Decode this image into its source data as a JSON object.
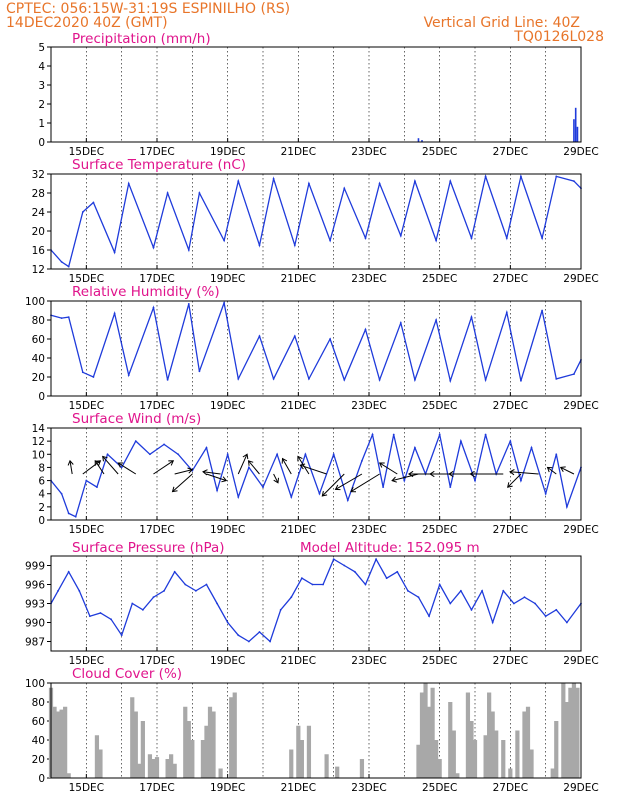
{
  "header": {
    "line1_left": "CPTEC:    056:15W-31:19S   ESPINILHO (RS)",
    "line2_left": "14DEC2020 40Z (GMT)",
    "line1_right": "Vertical Grid Line: 40Z",
    "line2_right": "TQ0126L028"
  },
  "colors": {
    "title": "#e0148c",
    "header": "#e8752a",
    "series": "#1f3bdb",
    "bars": "#a8a8a8",
    "arrows": "#000000"
  },
  "chart_data": [
    {
      "type": "bar",
      "title": "Precipitation (mm/h)",
      "ylim": [
        0,
        5
      ],
      "yticks": [
        "0",
        "1",
        "2",
        "3",
        "4",
        "5"
      ],
      "xlim": [
        14,
        29
      ],
      "xticks": [
        "15DEC",
        "17DEC",
        "19DEC",
        "21DEC",
        "23DEC",
        "25DEC",
        "27DEC",
        "29DEC"
      ],
      "x": [
        24.4,
        24.5,
        28.8,
        28.85,
        28.9
      ],
      "values": [
        0.2,
        0.1,
        1.2,
        1.8,
        0.8
      ]
    },
    {
      "type": "line",
      "title": "Surface Temperature (nC)",
      "ylim": [
        12,
        32
      ],
      "yticks": [
        "12",
        "16",
        "20",
        "24",
        "28",
        "32"
      ],
      "xlim": [
        14,
        29
      ],
      "xticks": [
        "15DEC",
        "17DEC",
        "19DEC",
        "21DEC",
        "23DEC",
        "25DEC",
        "27DEC",
        "29DEC"
      ],
      "x": [
        14.0,
        14.3,
        14.5,
        14.9,
        15.2,
        15.8,
        16.2,
        16.9,
        17.3,
        17.9,
        18.2,
        18.9,
        19.3,
        19.9,
        20.3,
        20.9,
        21.3,
        21.9,
        22.3,
        22.9,
        23.3,
        23.9,
        24.3,
        24.9,
        25.3,
        25.9,
        26.3,
        26.9,
        27.3,
        27.9,
        28.3,
        28.8,
        29.0
      ],
      "values": [
        16,
        13.5,
        12.5,
        24,
        26,
        15.5,
        30,
        16.5,
        28,
        16,
        28,
        18,
        30.5,
        17,
        31,
        17,
        30,
        18,
        29,
        18.5,
        30,
        19,
        30.5,
        18,
        30.5,
        18.5,
        31.5,
        18.5,
        31.5,
        18.5,
        31.5,
        30.5,
        29
      ]
    },
    {
      "type": "line",
      "title": "Relative Humidity (%)",
      "ylim": [
        0,
        100
      ],
      "yticks": [
        "0",
        "20",
        "40",
        "60",
        "80",
        "100"
      ],
      "xlim": [
        14,
        29
      ],
      "xticks": [
        "15DEC",
        "17DEC",
        "19DEC",
        "21DEC",
        "23DEC",
        "25DEC",
        "27DEC",
        "29DEC"
      ],
      "x": [
        14.0,
        14.3,
        14.5,
        14.9,
        15.2,
        15.8,
        16.2,
        16.9,
        17.3,
        17.9,
        18.2,
        18.9,
        19.3,
        19.9,
        20.3,
        20.9,
        21.3,
        21.9,
        22.3,
        22.9,
        23.3,
        23.9,
        24.3,
        24.9,
        25.3,
        25.9,
        26.3,
        26.9,
        27.3,
        27.9,
        28.3,
        28.8,
        29.0
      ],
      "values": [
        85,
        82,
        83,
        25,
        20,
        87,
        22,
        93,
        17,
        97,
        26,
        98,
        18,
        63,
        18,
        63,
        18,
        60,
        17,
        70,
        17,
        77,
        17,
        80,
        16,
        83,
        17,
        88,
        16,
        90,
        18,
        23,
        38
      ]
    },
    {
      "type": "line",
      "title": "Surface Wind (m/s)",
      "ylim": [
        0,
        14
      ],
      "yticks": [
        "0",
        "2",
        "4",
        "6",
        "8",
        "10",
        "12",
        "14"
      ],
      "xlim": [
        14,
        29
      ],
      "xticks": [
        "15DEC",
        "17DEC",
        "19DEC",
        "21DEC",
        "23DEC",
        "25DEC",
        "27DEC",
        "29DEC"
      ],
      "x": [
        14.0,
        14.3,
        14.5,
        14.7,
        15.0,
        15.3,
        15.6,
        16.0,
        16.4,
        16.8,
        17.2,
        17.6,
        18.0,
        18.4,
        18.7,
        19.0,
        19.3,
        19.6,
        20.0,
        20.4,
        20.8,
        21.2,
        21.6,
        22.0,
        22.4,
        22.8,
        23.1,
        23.4,
        23.7,
        24.0,
        24.3,
        24.6,
        25.0,
        25.3,
        25.6,
        26.0,
        26.3,
        26.6,
        27.0,
        27.3,
        27.6,
        28.0,
        28.3,
        28.6,
        29.0
      ],
      "values": [
        6,
        4,
        1,
        0.5,
        6,
        5,
        10,
        8,
        12,
        10,
        11.5,
        10,
        7.5,
        11,
        4.5,
        10,
        3.5,
        8,
        5,
        10,
        3.5,
        10,
        4,
        10,
        3,
        9,
        13,
        5,
        13,
        6,
        11,
        7,
        13,
        5,
        12,
        6,
        13,
        7,
        12,
        6,
        11,
        4,
        10,
        2,
        8
      ],
      "vectors": [
        {
          "x": 14.6,
          "u": -0.1,
          "v": 0.6
        },
        {
          "x": 14.9,
          "u": 0.8,
          "v": 0.6
        },
        {
          "x": 15.5,
          "u": -0.4,
          "v": 0.6
        },
        {
          "x": 15.9,
          "u": -0.7,
          "v": 0.8
        },
        {
          "x": 16.4,
          "u": -0.8,
          "v": 0.5
        },
        {
          "x": 16.9,
          "u": 0.9,
          "v": 0.6
        },
        {
          "x": 17.5,
          "u": 0.8,
          "v": 0.2
        },
        {
          "x": 18.0,
          "u": -0.9,
          "v": -0.8
        },
        {
          "x": 18.4,
          "u": 0.9,
          "v": -0.3
        },
        {
          "x": 18.8,
          "u": -0.8,
          "v": 0.1
        },
        {
          "x": 19.3,
          "u": 0.4,
          "v": 0.9
        },
        {
          "x": 19.9,
          "u": -0.5,
          "v": 0.6
        },
        {
          "x": 20.3,
          "u": 0.2,
          "v": -0.4
        },
        {
          "x": 20.8,
          "u": -0.4,
          "v": 0.7
        },
        {
          "x": 21.3,
          "u": -0.5,
          "v": 0.8
        },
        {
          "x": 21.8,
          "u": -1.2,
          "v": 0.4
        },
        {
          "x": 22.3,
          "u": -1.0,
          "v": -1.0
        },
        {
          "x": 22.8,
          "u": -1.2,
          "v": -0.7
        },
        {
          "x": 23.3,
          "u": -1.3,
          "v": -0.8
        },
        {
          "x": 23.8,
          "u": -0.8,
          "v": 0.5
        },
        {
          "x": 24.4,
          "u": -1.2,
          "v": -0.3
        },
        {
          "x": 25.0,
          "u": -1.4,
          "v": 0.0
        },
        {
          "x": 25.6,
          "u": -1.4,
          "v": 0.0
        },
        {
          "x": 26.2,
          "u": -1.5,
          "v": 0.0
        },
        {
          "x": 26.8,
          "u": -1.5,
          "v": 0.0
        },
        {
          "x": 27.3,
          "u": -0.6,
          "v": -0.6
        },
        {
          "x": 27.8,
          "u": -1.3,
          "v": 0.1
        },
        {
          "x": 28.3,
          "u": -0.4,
          "v": 0.3
        },
        {
          "x": 28.8,
          "u": -0.6,
          "v": 0.3
        }
      ]
    },
    {
      "type": "line",
      "title": "Surface Pressure (hPa)",
      "subtitle": "Model Altitude: 152.095 m",
      "ylim": [
        985.5,
        1000.5
      ],
      "yticks": [
        "987",
        "990",
        "993",
        "996",
        "999"
      ],
      "ytick_values": [
        987,
        990,
        993,
        996,
        999
      ],
      "xlim": [
        14,
        29
      ],
      "xticks": [
        "15DEC",
        "17DEC",
        "19DEC",
        "21DEC",
        "23DEC",
        "25DEC",
        "27DEC",
        "29DEC"
      ],
      "x": [
        14.0,
        14.2,
        14.5,
        14.8,
        15.1,
        15.4,
        15.7,
        16.0,
        16.3,
        16.6,
        16.9,
        17.2,
        17.5,
        17.8,
        18.1,
        18.4,
        18.7,
        19.0,
        19.3,
        19.6,
        19.9,
        20.2,
        20.5,
        20.8,
        21.1,
        21.4,
        21.7,
        22.0,
        22.3,
        22.6,
        22.9,
        23.2,
        23.5,
        23.8,
        24.1,
        24.4,
        24.7,
        25.0,
        25.3,
        25.6,
        25.9,
        26.2,
        26.5,
        26.8,
        27.1,
        27.4,
        27.7,
        28.0,
        28.3,
        28.6,
        29.0
      ],
      "values": [
        993,
        995,
        998,
        995,
        991,
        991.5,
        990.5,
        988,
        993,
        992,
        994,
        995,
        998,
        996,
        995,
        996,
        993,
        990,
        988,
        987,
        988.5,
        987,
        992,
        994,
        997,
        996,
        996,
        1000,
        999,
        998,
        996,
        1000,
        997,
        998,
        995,
        994,
        991,
        996,
        993,
        995,
        992,
        995,
        990,
        995,
        993,
        994,
        993,
        991,
        992,
        990,
        993
      ]
    },
    {
      "type": "bar",
      "title": "Cloud Cover (%)",
      "ylim": [
        0,
        100
      ],
      "yticks": [
        "0",
        "20",
        "40",
        "60",
        "80",
        "100"
      ],
      "xlim": [
        14,
        29
      ],
      "xticks": [
        "15DEC",
        "17DEC",
        "19DEC",
        "21DEC",
        "23DEC",
        "25DEC",
        "27DEC",
        "29DEC"
      ],
      "x": [
        14.0,
        14.1,
        14.2,
        14.3,
        14.4,
        14.5,
        15.3,
        15.4,
        16.3,
        16.4,
        16.5,
        16.6,
        16.8,
        16.9,
        17.0,
        17.3,
        17.4,
        17.5,
        17.8,
        17.9,
        18.0,
        18.3,
        18.4,
        18.5,
        18.6,
        18.8,
        19.1,
        19.2,
        20.8,
        21.0,
        21.1,
        21.3,
        21.8,
        22.1,
        22.8,
        24.4,
        24.5,
        24.6,
        24.7,
        24.8,
        24.9,
        25.0,
        25.3,
        25.4,
        25.5,
        25.8,
        25.9,
        26.0,
        26.3,
        26.4,
        26.5,
        26.6,
        26.8,
        27.0,
        27.2,
        27.4,
        27.5,
        27.6,
        28.2,
        28.3,
        28.5,
        28.6,
        28.7,
        28.8,
        28.9
      ],
      "values": [
        95,
        75,
        70,
        72,
        75,
        5,
        45,
        30,
        85,
        70,
        15,
        60,
        25,
        20,
        22,
        20,
        25,
        15,
        75,
        60,
        40,
        40,
        55,
        75,
        70,
        10,
        85,
        90,
        30,
        55,
        40,
        55,
        25,
        12,
        20,
        35,
        90,
        100,
        75,
        95,
        40,
        20,
        80,
        50,
        5,
        90,
        60,
        40,
        45,
        90,
        70,
        50,
        40,
        10,
        50,
        70,
        75,
        30,
        10,
        60,
        100,
        80,
        95,
        100,
        95
      ]
    }
  ]
}
